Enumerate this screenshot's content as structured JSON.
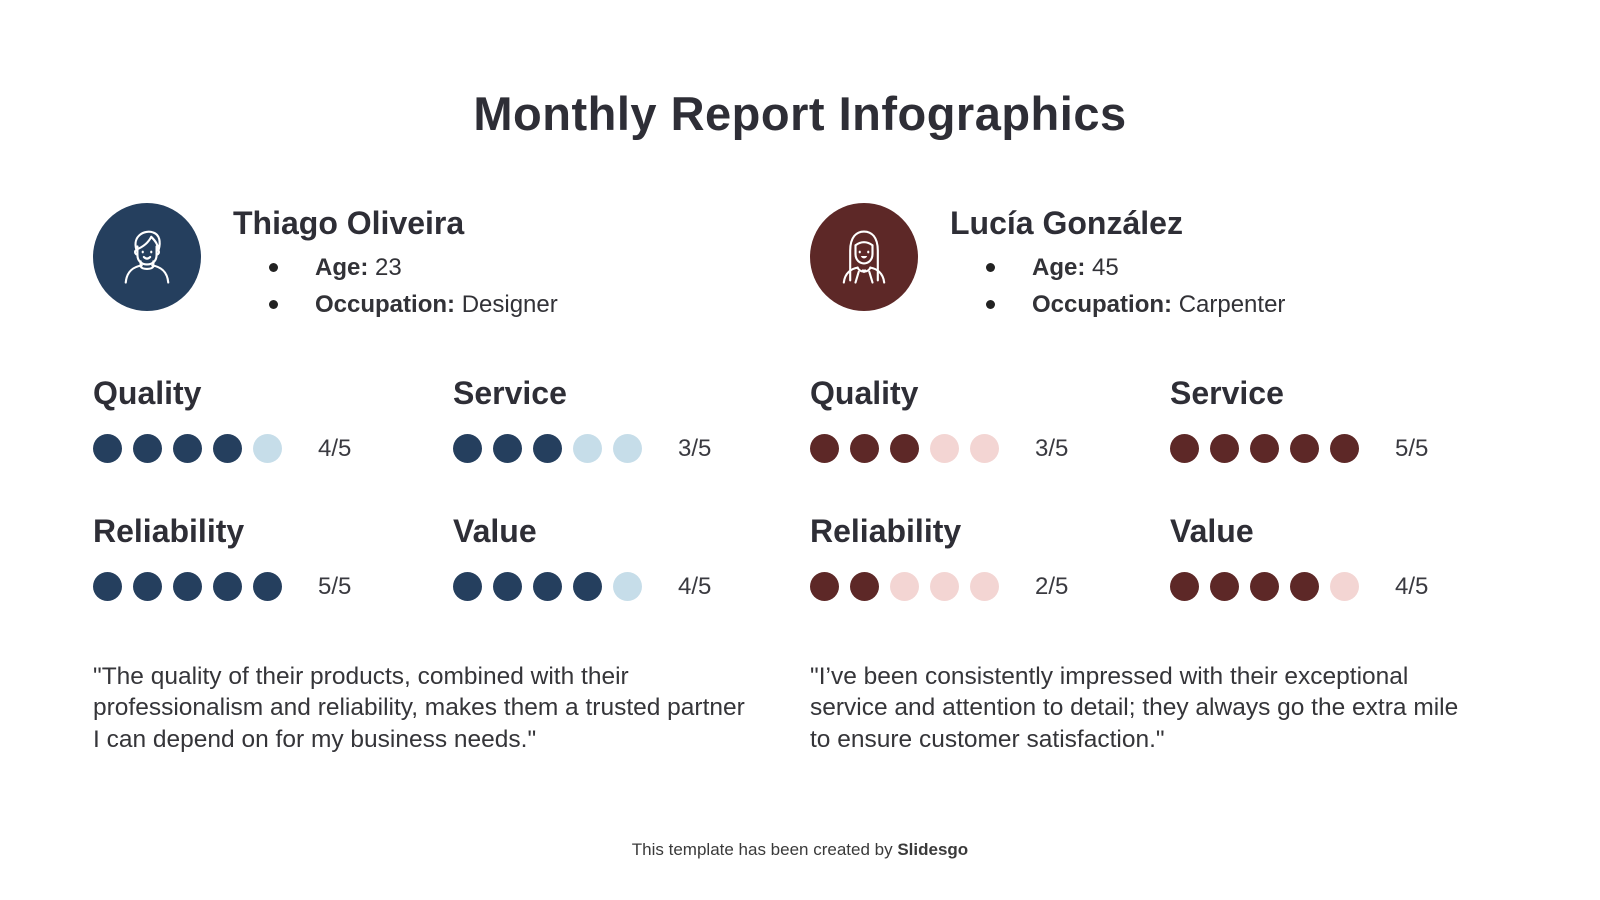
{
  "page": {
    "title": "Monthly Report Infographics"
  },
  "footer": {
    "prefix": "This template has been created by",
    "brand": "Slidesgo"
  },
  "personas": [
    {
      "name": "Thiago Oliveira",
      "avatar_icon": "man-avatar",
      "details": [
        {
          "label": "Age:",
          "value": "23"
        },
        {
          "label": "Occupation:",
          "value": "Designer"
        }
      ],
      "colors": {
        "filled": "#253F5E",
        "empty": "#C6DDE9"
      },
      "ratings": [
        {
          "label": "Quality",
          "score": 4,
          "max": 5,
          "score_text": "4/5"
        },
        {
          "label": "Service",
          "score": 3,
          "max": 5,
          "score_text": "3/5"
        },
        {
          "label": "Reliability",
          "score": 5,
          "max": 5,
          "score_text": "5/5"
        },
        {
          "label": "Value",
          "score": 4,
          "max": 5,
          "score_text": "4/5"
        }
      ],
      "quote": "\"The quality of their products, combined with their professionalism and reliability, makes them a trusted partner I can depend on for my business needs.\""
    },
    {
      "name": "Lucía González",
      "avatar_icon": "woman-avatar",
      "details": [
        {
          "label": "Age:",
          "value": "45"
        },
        {
          "label": "Occupation:",
          "value": "Carpenter"
        }
      ],
      "colors": {
        "filled": "#5D2827",
        "empty": "#F3D5D3"
      },
      "ratings": [
        {
          "label": "Quality",
          "score": 3,
          "max": 5,
          "score_text": "3/5"
        },
        {
          "label": "Service",
          "score": 5,
          "max": 5,
          "score_text": "5/5"
        },
        {
          "label": "Reliability",
          "score": 2,
          "max": 5,
          "score_text": "2/5"
        },
        {
          "label": "Value",
          "score": 4,
          "max": 5,
          "score_text": "4/5"
        }
      ],
      "quote": "\"I’ve been consistently impressed with their exceptional service and attention to detail; they always go the extra mile to ensure customer satisfaction.\""
    }
  ]
}
